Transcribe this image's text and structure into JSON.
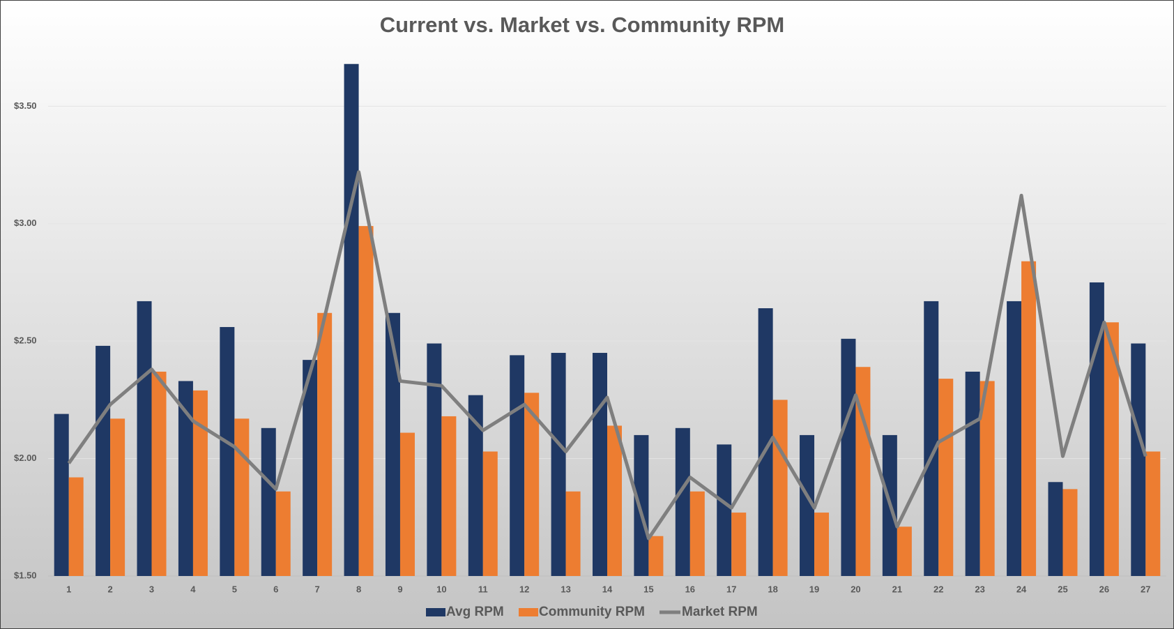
{
  "chart_data": {
    "type": "bar_line",
    "title": "Current vs. Market vs. Community RPM",
    "categories": [
      "1",
      "2",
      "3",
      "4",
      "5",
      "6",
      "7",
      "8",
      "9",
      "10",
      "11",
      "12",
      "13",
      "14",
      "15",
      "16",
      "17",
      "18",
      "19",
      "20",
      "21",
      "22",
      "23",
      "24",
      "25",
      "26",
      "27"
    ],
    "series": [
      {
        "name": "Avg RPM",
        "type": "bar",
        "color": "#1f3864",
        "values": [
          2.19,
          2.48,
          2.67,
          2.33,
          2.56,
          2.13,
          2.42,
          3.68,
          2.62,
          2.49,
          2.27,
          2.44,
          2.45,
          2.45,
          2.1,
          2.13,
          2.06,
          2.64,
          2.1,
          2.51,
          2.1,
          2.67,
          2.37,
          2.67,
          1.9,
          2.75,
          2.49
        ]
      },
      {
        "name": "Community RPM",
        "type": "bar",
        "color": "#ed7d31",
        "values": [
          1.92,
          2.17,
          2.37,
          2.29,
          2.17,
          1.86,
          2.62,
          2.99,
          2.11,
          2.18,
          2.03,
          2.28,
          1.86,
          2.14,
          1.67,
          1.86,
          1.77,
          2.25,
          1.77,
          2.39,
          1.71,
          2.34,
          2.33,
          2.84,
          1.87,
          2.58,
          2.03
        ]
      },
      {
        "name": "Market RPM",
        "type": "line",
        "color": "#7f7f7f",
        "values": [
          1.98,
          2.23,
          2.38,
          2.16,
          2.05,
          1.87,
          2.47,
          3.22,
          2.33,
          2.31,
          2.12,
          2.23,
          2.03,
          2.26,
          1.66,
          1.92,
          1.79,
          2.09,
          1.79,
          2.27,
          1.71,
          2.07,
          2.17,
          3.12,
          2.01,
          2.58,
          2.01
        ]
      }
    ],
    "ylim": [
      1.5,
      3.7
    ],
    "yticks": [
      {
        "value": 1.5,
        "label": "$1.50"
      },
      {
        "value": 2.0,
        "label": "$2.00"
      },
      {
        "value": 2.5,
        "label": "$2.50"
      },
      {
        "value": 3.0,
        "label": "$3.00"
      },
      {
        "value": 3.5,
        "label": "$3.50"
      }
    ],
    "grid": true,
    "legend": "bottom"
  }
}
